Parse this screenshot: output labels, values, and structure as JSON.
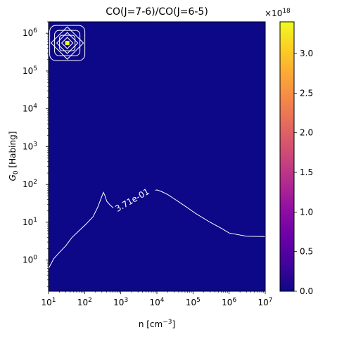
{
  "chart_data": {
    "type": "heatmap",
    "title": "CO(J=7-6)/CO(J=6-5)",
    "xlabel_base": "n [cm",
    "xlabel_exp": "−3",
    "xlabel_close": "]",
    "ylabel_sym": "G",
    "ylabel_sub": "0",
    "ylabel_rest": " [Habing]",
    "x_scale": "log",
    "y_scale": "log",
    "xlim": [
      10,
      10000000
    ],
    "ylim": [
      0.15,
      2000000
    ],
    "x_ticks": [
      {
        "base": "10",
        "exp": "1",
        "value": 10
      },
      {
        "base": "10",
        "exp": "2",
        "value": 100
      },
      {
        "base": "10",
        "exp": "3",
        "value": 1000
      },
      {
        "base": "10",
        "exp": "4",
        "value": 10000
      },
      {
        "base": "10",
        "exp": "5",
        "value": 100000
      },
      {
        "base": "10",
        "exp": "6",
        "value": 1000000
      },
      {
        "base": "10",
        "exp": "7",
        "value": 10000000
      }
    ],
    "y_ticks": [
      {
        "base": "10",
        "exp": "0",
        "value": 1
      },
      {
        "base": "10",
        "exp": "1",
        "value": 10
      },
      {
        "base": "10",
        "exp": "2",
        "value": 100
      },
      {
        "base": "10",
        "exp": "3",
        "value": 1000
      },
      {
        "base": "10",
        "exp": "4",
        "value": 10000
      },
      {
        "base": "10",
        "exp": "5",
        "value": 100000
      },
      {
        "base": "10",
        "exp": "6",
        "value": 1000000
      }
    ],
    "background_value": 0.0,
    "hotspot": {
      "n": 33,
      "G0": 550000,
      "value": 3.4e+18
    },
    "contour_label": "3.71e-01",
    "contour_line": [
      [
        10,
        0.6
      ],
      [
        14,
        1.1
      ],
      [
        20,
        1.6
      ],
      [
        30,
        2.4
      ],
      [
        45,
        4.0
      ],
      [
        70,
        6.0
      ],
      [
        110,
        9.0
      ],
      [
        170,
        14
      ],
      [
        230,
        25
      ],
      [
        290,
        45
      ],
      [
        330,
        62
      ],
      [
        360,
        52
      ],
      [
        410,
        36
      ],
      [
        500,
        29
      ],
      [
        620,
        24
      ]
    ],
    "contour_line2": [
      [
        9000,
        70
      ],
      [
        10000,
        72
      ],
      [
        13000,
        66
      ],
      [
        20000,
        54
      ],
      [
        30000,
        42
      ],
      [
        60000,
        27
      ],
      [
        120000,
        17
      ],
      [
        300000,
        10
      ],
      [
        600000,
        7
      ],
      [
        1000000,
        5.2
      ],
      [
        3000000,
        4.3
      ],
      [
        10000000,
        4.2
      ]
    ],
    "contour_color": "#ffffff",
    "colorbar": {
      "colormap": "plasma",
      "min": 0.0,
      "max": 3.4,
      "multiplier_base": "×10",
      "multiplier_exp": "18",
      "ticks": [
        {
          "value": 0.0,
          "label": "0.0"
        },
        {
          "value": 0.5,
          "label": "0.5"
        },
        {
          "value": 1.0,
          "label": "1.0"
        },
        {
          "value": 1.5,
          "label": "1.5"
        },
        {
          "value": 2.0,
          "label": "2.0"
        },
        {
          "value": 2.5,
          "label": "2.5"
        },
        {
          "value": 3.0,
          "label": "3.0"
        }
      ]
    },
    "background_color": "#0d0887"
  }
}
